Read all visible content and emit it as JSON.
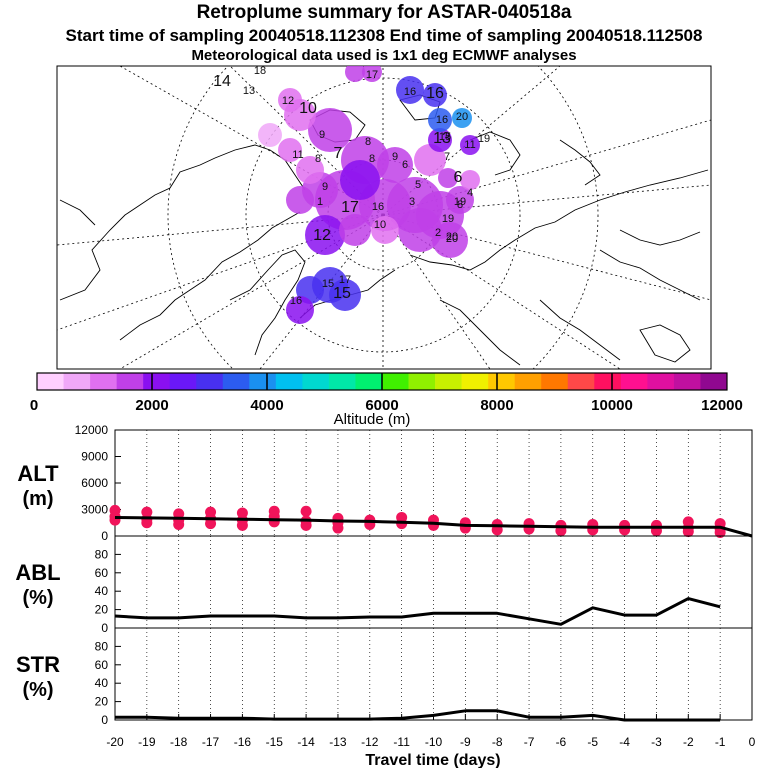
{
  "header": {
    "title": "Retroplume summary for ASTAR-040518a",
    "sampling": "Start time of sampling 20040518.112308     End time of sampling 20040518.112508",
    "met": "Meteorological data used is 1x1 deg ECMWF analyses"
  },
  "colors": {
    "legend": [
      "#ffd0ff",
      "#f0a8f8",
      "#e070f0",
      "#c040e8",
      "#8a10f0",
      "#6a18f8",
      "#4830f0",
      "#2c5cf0",
      "#1a90f0",
      "#00c0f0",
      "#00d8d0",
      "#00e8a8",
      "#00f070",
      "#40f000",
      "#90f000",
      "#c8f000",
      "#f0f000",
      "#ffc800",
      "#ffa000",
      "#ff7800",
      "#ff4848",
      "#ff1060",
      "#ff1090",
      "#e010a0",
      "#c010a0",
      "#900890"
    ],
    "points": "#f0145a",
    "line": "#000000"
  },
  "map": {
    "description_labels": [
      "14",
      "13",
      "18",
      "16",
      "17",
      "16",
      "16",
      "15",
      "20",
      "12",
      "10",
      "9",
      "8",
      "11",
      "8",
      "7",
      "8",
      "6",
      "5",
      "9",
      "17",
      "1",
      "16",
      "19",
      "2",
      "12",
      "10",
      "15",
      "20",
      "19",
      "13",
      "11",
      "20",
      "9",
      "7",
      "6",
      "4",
      "3",
      "8",
      "17",
      "15",
      "16",
      "19"
    ]
  },
  "chart_data": [
    {
      "type": "legend",
      "title": "Altitude (m)",
      "ticks": [
        "0",
        "2000",
        "4000",
        "6000",
        "8000",
        "10000",
        "12000"
      ],
      "range": [
        0,
        12000
      ]
    },
    {
      "type": "scatter+line",
      "ylabel": "ALT\n(m)",
      "ylabel_lines": [
        "ALT",
        "(m)"
      ],
      "ylim": [
        0,
        12000
      ],
      "yticks": [
        "0",
        "3000",
        "6000",
        "9000",
        "12000"
      ],
      "x": [
        -20,
        -19,
        -18,
        -17,
        -16,
        -15,
        -14,
        -13,
        -12,
        -11,
        -10,
        -9,
        -8,
        -7,
        -6,
        -5,
        -4,
        -3,
        -2,
        -1,
        0
      ],
      "line_values": [
        2100,
        2050,
        2000,
        1950,
        1900,
        1850,
        1800,
        1700,
        1650,
        1550,
        1450,
        1200,
        1150,
        1100,
        1050,
        1000,
        1000,
        1000,
        1000,
        1000,
        0
      ],
      "scatter": [
        [
          -20,
          2900
        ],
        [
          -20,
          2200
        ],
        [
          -20,
          1800
        ],
        [
          -19,
          2700
        ],
        [
          -19,
          1900
        ],
        [
          -19,
          1500
        ],
        [
          -18,
          2500
        ],
        [
          -18,
          1800
        ],
        [
          -18,
          1300
        ],
        [
          -17,
          2700
        ],
        [
          -17,
          2000
        ],
        [
          -17,
          1400
        ],
        [
          -16,
          2600
        ],
        [
          -16,
          1800
        ],
        [
          -16,
          1200
        ],
        [
          -15,
          2800
        ],
        [
          -15,
          2200
        ],
        [
          -15,
          1600
        ],
        [
          -14,
          2800
        ],
        [
          -14,
          1700
        ],
        [
          -14,
          1200
        ],
        [
          -13,
          2000
        ],
        [
          -13,
          1500
        ],
        [
          -13,
          900
        ],
        [
          -12,
          1800
        ],
        [
          -12,
          1300
        ],
        [
          -11,
          2100
        ],
        [
          -11,
          1400
        ],
        [
          -10,
          1800
        ],
        [
          -10,
          1200
        ],
        [
          -9,
          1500
        ],
        [
          -9,
          900
        ],
        [
          -8,
          1300
        ],
        [
          -8,
          700
        ],
        [
          -7,
          1400
        ],
        [
          -7,
          800
        ],
        [
          -6,
          1200
        ],
        [
          -6,
          600
        ],
        [
          -5,
          1300
        ],
        [
          -5,
          700
        ],
        [
          -4,
          1200
        ],
        [
          -4,
          700
        ],
        [
          -3,
          1200
        ],
        [
          -3,
          600
        ],
        [
          -2,
          1600
        ],
        [
          -2,
          900
        ],
        [
          -2,
          500
        ],
        [
          -1,
          1400
        ],
        [
          -1,
          800
        ],
        [
          -1,
          400
        ]
      ]
    },
    {
      "type": "line",
      "ylabel_lines": [
        "ABL",
        "(%)"
      ],
      "ylim": [
        0,
        100
      ],
      "yticks": [
        "0",
        "20",
        "40",
        "60",
        "80"
      ],
      "x": [
        -20,
        -19,
        -18,
        -17,
        -16,
        -15,
        -14,
        -13,
        -12,
        -11,
        -10,
        -9,
        -8,
        -7,
        -6,
        -5,
        -4,
        -3,
        -2,
        -1
      ],
      "values": [
        13,
        11,
        11,
        13,
        13,
        13,
        11,
        11,
        12,
        12,
        16,
        16,
        16,
        10,
        4,
        22,
        14,
        14,
        32,
        23
      ]
    },
    {
      "type": "line",
      "ylabel_lines": [
        "STR",
        "(%)"
      ],
      "ylim": [
        0,
        100
      ],
      "yticks": [
        "0",
        "20",
        "40",
        "60",
        "80"
      ],
      "x": [
        -20,
        -19,
        -18,
        -17,
        -16,
        -15,
        -14,
        -13,
        -12,
        -11,
        -10,
        -9,
        -8,
        -7,
        -6,
        -5,
        -4,
        -3,
        -2,
        -1
      ],
      "values": [
        3,
        3,
        2,
        2,
        2,
        1,
        1,
        1,
        1,
        2,
        5,
        10,
        10,
        3,
        3,
        5,
        0,
        0,
        0,
        0
      ]
    }
  ],
  "xaxis": {
    "label": "Travel time (days)",
    "ticks": [
      "-20",
      "-19",
      "-18",
      "-17",
      "-16",
      "-15",
      "-14",
      "-13",
      "-12",
      "-11",
      "-10",
      "-9",
      "-8",
      "-7",
      "-6",
      "-5",
      "-4",
      "-3",
      "-2",
      "-1",
      "0"
    ]
  }
}
